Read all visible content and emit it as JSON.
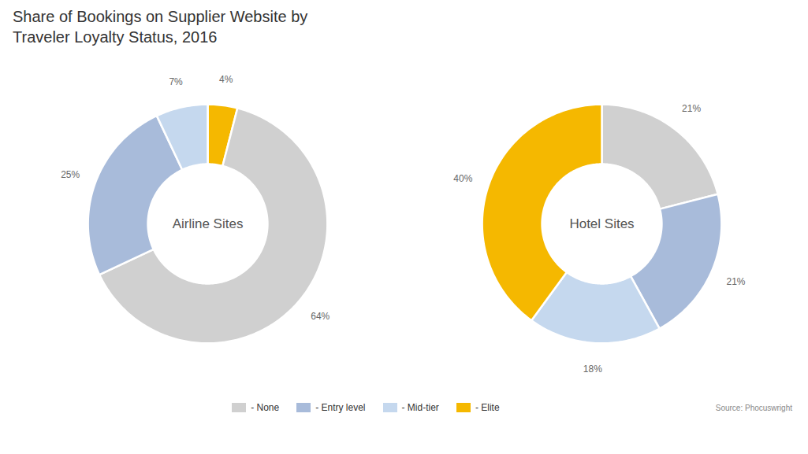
{
  "chart_data": {
    "type": "pie",
    "title": "Share of Bookings on Supplier Website by\nTraveler Loyalty Status, 2016",
    "caption": "Source: Phocuswright",
    "legend": "bottom",
    "data_labels": true,
    "categories": [
      "- None",
      "- Entry level",
      "- Mid-tier",
      "- Elite"
    ],
    "colors": [
      "#d0d0d0",
      "#a8bbda",
      "#c5d8ee",
      "#f5b800"
    ],
    "series": [
      {
        "name": "Airline Sites",
        "categories": [
          "- Elite",
          "- None",
          "- Entry level",
          "- Mid-tier"
        ],
        "values": [
          4,
          64,
          25,
          7
        ],
        "value_labels": [
          "4%",
          "64%",
          "25%",
          "7%"
        ],
        "colors": [
          "#f5b800",
          "#d0d0d0",
          "#a8bbda",
          "#c5d8ee"
        ]
      },
      {
        "name": "Hotel Sites",
        "categories": [
          "- None",
          "- Entry level",
          "- Mid-tier",
          "- Elite"
        ],
        "values": [
          21,
          21,
          18,
          40
        ],
        "value_labels": [
          "21%",
          "21%",
          "18%",
          "40%"
        ],
        "colors": [
          "#d0d0d0",
          "#a8bbda",
          "#c5d8ee",
          "#f5b800"
        ]
      }
    ]
  }
}
